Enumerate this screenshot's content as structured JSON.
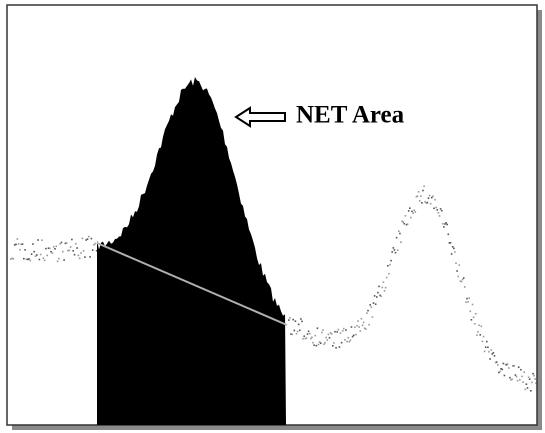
{
  "annotation": {
    "label": "NET Area"
  }
}
